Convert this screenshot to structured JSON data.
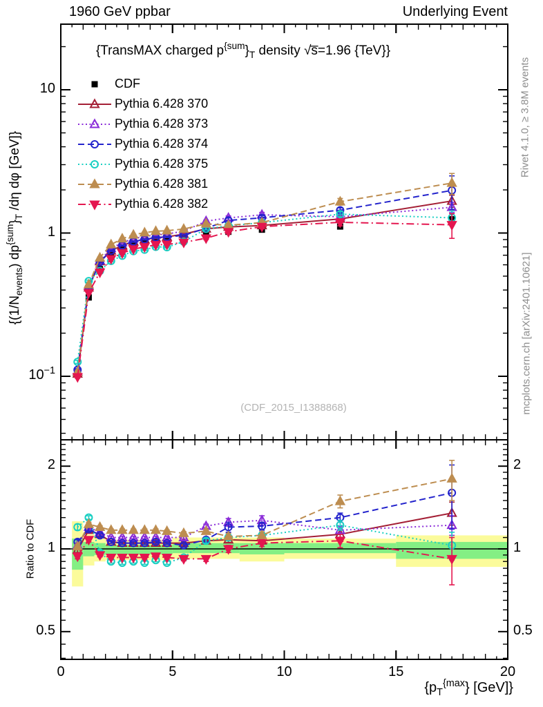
{
  "header": {
    "left": "1960 GeV ppbar",
    "right": "Underlying Event"
  },
  "margin_texts": {
    "rivet": "Rivet 4.1.0, ≥ 3.8M events",
    "mcplots": "mcplots.cern.ch [arXiv:2401.10621]"
  },
  "watermark": "(CDF_2015_I1388868)",
  "title_rich": [
    {
      "t": "{TransMAX charged p"
    },
    {
      "t": "{sum",
      "s": "sup"
    },
    {
      "t": "}"
    },
    {
      "t": "T",
      "s": "sub"
    },
    {
      "t": " density √s̅=1.96 {TeV}}"
    }
  ],
  "ylabel_rich": [
    {
      "t": "{(1/N"
    },
    {
      "t": "events",
      "s": "sub"
    },
    {
      "t": ") dp"
    },
    {
      "t": "{sum",
      "s": "sup"
    },
    {
      "t": "}"
    },
    {
      "t": "T",
      "s": "sub"
    },
    {
      "t": " /dη dφ [GeV]}"
    }
  ],
  "xlabel_rich": [
    {
      "t": "{p"
    },
    {
      "t": "T",
      "s": "sub"
    },
    {
      "t": "{max",
      "s": "sup"
    },
    {
      "t": "} [GeV]}"
    }
  ],
  "chart_data": {
    "type": "line",
    "title": "{TransMAX charged p^{sum}_T density sqrt(s)=1.96 {TeV}}",
    "xlabel": "{p_T^{max}} [GeV]}",
    "ylabel_main": "{(1/N_events) dp^{sum}_T /deta dphi [GeV]}",
    "ylabel_ratio": "Ratio to CDF",
    "x_axis": {
      "range": [
        0,
        20
      ],
      "major_ticks": [
        0,
        5,
        10,
        15,
        20
      ],
      "tick_labels": [
        "0",
        "5",
        "10",
        "15",
        "20"
      ]
    },
    "y_axis_main": {
      "log": true,
      "range": [
        0.037,
        28.7
      ],
      "tick_labels": [
        {
          "v": 10,
          "rich": [
            {
              "t": "10"
            }
          ]
        },
        {
          "v": 1,
          "rich": [
            {
              "t": "1"
            }
          ]
        },
        {
          "v": 0.1,
          "rich": [
            {
              "t": "10"
            },
            {
              "t": "−1",
              "s": "sup"
            }
          ]
        }
      ],
      "minor_ticks": [
        0.04,
        0.05,
        0.06,
        0.07,
        0.08,
        0.09,
        0.2,
        0.3,
        0.4,
        0.5,
        0.6,
        0.7,
        0.8,
        0.9,
        2,
        3,
        4,
        5,
        6,
        7,
        8,
        9,
        20
      ]
    },
    "y_axis_ratio": {
      "log": true,
      "range": [
        0.4,
        2.49
      ],
      "tick_labels": [
        {
          "v": 2,
          "label": "2"
        },
        {
          "v": 1,
          "label": "1"
        },
        {
          "v": 0.5,
          "label": "0.5"
        }
      ],
      "minor_ticks": [
        0.4,
        0.45,
        0.55,
        0.6,
        0.65,
        0.7,
        0.75,
        0.8,
        0.85,
        0.9,
        0.95,
        1.1,
        1.2,
        1.3,
        1.4,
        1.5,
        1.6,
        1.7,
        1.8,
        1.9,
        2.1,
        2.2,
        2.3,
        2.4
      ]
    },
    "x": [
      0.75,
      1.25,
      1.75,
      2.25,
      2.75,
      3.25,
      3.75,
      4.25,
      4.75,
      5.5,
      6.5,
      7.5,
      9,
      12.5,
      17.5
    ],
    "series": [
      {
        "name": "CDF",
        "color": "#000000",
        "marker": "square",
        "fill": true,
        "line": "none",
        "values": [
          0.105,
          0.355,
          0.56,
          0.71,
          0.78,
          0.83,
          0.86,
          0.88,
          0.895,
          0.935,
          1.0,
          1.02,
          1.055,
          1.11,
          1.24
        ],
        "yerr": [
          0.006,
          0.012,
          0.015,
          0.016,
          0.017,
          0.018,
          0.018,
          0.019,
          0.019,
          0.02,
          0.022,
          0.023,
          0.025,
          0.035,
          0.06
        ]
      },
      {
        "name": "Pythia 6.428 370",
        "color": "#a41f35",
        "marker": "triangle-up",
        "fill": false,
        "line": "solid",
        "values": [
          0.104,
          0.415,
          0.633,
          0.753,
          0.819,
          0.872,
          0.903,
          0.924,
          0.94,
          0.982,
          1.07,
          1.102,
          1.129,
          1.254,
          1.674
        ],
        "ratio": [
          0.99,
          1.17,
          1.13,
          1.06,
          1.05,
          1.05,
          1.05,
          1.05,
          1.05,
          1.05,
          1.07,
          1.08,
          1.07,
          1.13,
          1.35
        ],
        "ratio_err": [
          0.02,
          0.02,
          0.015,
          0.012,
          0.012,
          0.012,
          0.012,
          0.012,
          0.012,
          0.015,
          0.02,
          0.025,
          0.025,
          0.04,
          0.13
        ]
      },
      {
        "name": "Pythia 6.428 373",
        "color": "#8a2bd8",
        "marker": "triangle-up",
        "fill": false,
        "line": "dotted",
        "values": [
          0.108,
          0.426,
          0.644,
          0.781,
          0.858,
          0.913,
          0.946,
          0.968,
          0.985,
          1.029,
          1.21,
          1.275,
          1.34,
          1.299,
          1.513
        ],
        "ratio": [
          1.03,
          1.2,
          1.15,
          1.1,
          1.1,
          1.1,
          1.1,
          1.1,
          1.1,
          1.1,
          1.21,
          1.25,
          1.27,
          1.17,
          1.22
        ],
        "ratio_err": [
          0.02,
          0.02,
          0.015,
          0.012,
          0.012,
          0.012,
          0.012,
          0.012,
          0.012,
          0.015,
          0.02,
          0.04,
          0.05,
          0.04,
          0.1
        ]
      },
      {
        "name": "Pythia 6.428 374",
        "color": "#2323cc",
        "marker": "circle",
        "fill": false,
        "line": "dashed",
        "values": [
          0.111,
          0.419,
          0.627,
          0.753,
          0.819,
          0.872,
          0.903,
          0.933,
          0.94,
          0.963,
          1.08,
          1.224,
          1.277,
          1.443,
          1.984
        ],
        "ratio": [
          1.06,
          1.18,
          1.12,
          1.06,
          1.05,
          1.05,
          1.05,
          1.06,
          1.05,
          1.03,
          1.08,
          1.2,
          1.21,
          1.3,
          1.6
        ],
        "ratio_err": [
          0.02,
          0.02,
          0.015,
          0.012,
          0.012,
          0.012,
          0.012,
          0.012,
          0.012,
          0.015,
          0.02,
          0.05,
          0.04,
          0.05,
          0.42
        ]
      },
      {
        "name": "Pythia 6.428 375",
        "color": "#18cfc2",
        "marker": "circle",
        "fill": false,
        "line": "dotted",
        "values": [
          0.126,
          0.462,
          0.543,
          0.639,
          0.694,
          0.747,
          0.765,
          0.801,
          0.797,
          0.87,
          1.07,
          1.122,
          1.182,
          1.354,
          1.277
        ],
        "ratio": [
          1.2,
          1.3,
          0.97,
          0.9,
          0.89,
          0.9,
          0.89,
          0.91,
          0.89,
          0.93,
          1.07,
          1.1,
          1.12,
          1.22,
          1.03
        ],
        "ratio_err": [
          0.03,
          0.02,
          0.015,
          0.012,
          0.012,
          0.012,
          0.012,
          0.012,
          0.012,
          0.015,
          0.02,
          0.03,
          0.03,
          0.05,
          0.12
        ]
      },
      {
        "name": "Pythia 6.428 381",
        "color": "#bd8d50",
        "marker": "triangle-up",
        "fill": true,
        "line": "dashed",
        "values": [
          0.107,
          0.437,
          0.672,
          0.831,
          0.913,
          0.971,
          1.006,
          1.03,
          1.038,
          1.066,
          1.16,
          1.132,
          1.182,
          1.654,
          2.232
        ],
        "ratio": [
          1.02,
          1.23,
          1.2,
          1.17,
          1.17,
          1.17,
          1.17,
          1.17,
          1.16,
          1.14,
          1.16,
          1.11,
          1.12,
          1.49,
          1.8
        ],
        "ratio_err": [
          0.02,
          0.02,
          0.015,
          0.012,
          0.012,
          0.012,
          0.012,
          0.012,
          0.012,
          0.015,
          0.02,
          0.03,
          0.035,
          0.08,
          0.3
        ]
      },
      {
        "name": "Pythia 6.428 382",
        "color": "#e4164f",
        "marker": "triangle-down",
        "fill": true,
        "line": "dashdot",
        "values": [
          0.099,
          0.383,
          0.532,
          0.66,
          0.725,
          0.772,
          0.8,
          0.827,
          0.832,
          0.86,
          0.92,
          1.02,
          1.108,
          1.188,
          1.141
        ],
        "ratio": [
          0.94,
          1.08,
          0.95,
          0.93,
          0.93,
          0.93,
          0.93,
          0.94,
          0.93,
          0.92,
          0.92,
          1.0,
          1.05,
          1.07,
          0.92
        ],
        "ratio_err": [
          0.02,
          0.02,
          0.015,
          0.012,
          0.012,
          0.012,
          0.012,
          0.012,
          0.012,
          0.015,
          0.02,
          0.03,
          0.03,
          0.06,
          0.18
        ]
      }
    ],
    "ratio_bands": {
      "yellow_color": "#fbfb9b",
      "green_color": "#84ef84",
      "yellow": [
        [
          0.5,
          1.0,
          0.73,
          1.26
        ],
        [
          1.0,
          1.5,
          0.87,
          1.13
        ],
        [
          1.5,
          2.0,
          0.9,
          1.1
        ],
        [
          2.0,
          5.0,
          0.91,
          1.08
        ],
        [
          5.0,
          8.0,
          0.92,
          1.1
        ],
        [
          8.0,
          10.0,
          0.9,
          1.1
        ],
        [
          10.0,
          15.0,
          0.92,
          1.09
        ],
        [
          15.0,
          20.0,
          0.86,
          1.12
        ]
      ],
      "green": [
        [
          0.5,
          1.0,
          0.84,
          1.09
        ],
        [
          1.0,
          1.5,
          0.94,
          1.06
        ],
        [
          1.5,
          2.0,
          0.95,
          1.05
        ],
        [
          2.0,
          5.0,
          0.955,
          1.035
        ],
        [
          5.0,
          8.0,
          0.965,
          1.05
        ],
        [
          8.0,
          10.0,
          0.955,
          1.05
        ],
        [
          10.0,
          15.0,
          0.965,
          1.05
        ],
        [
          15.0,
          20.0,
          0.92,
          1.06
        ]
      ]
    },
    "legend_position": "top-left",
    "grid": false
  }
}
